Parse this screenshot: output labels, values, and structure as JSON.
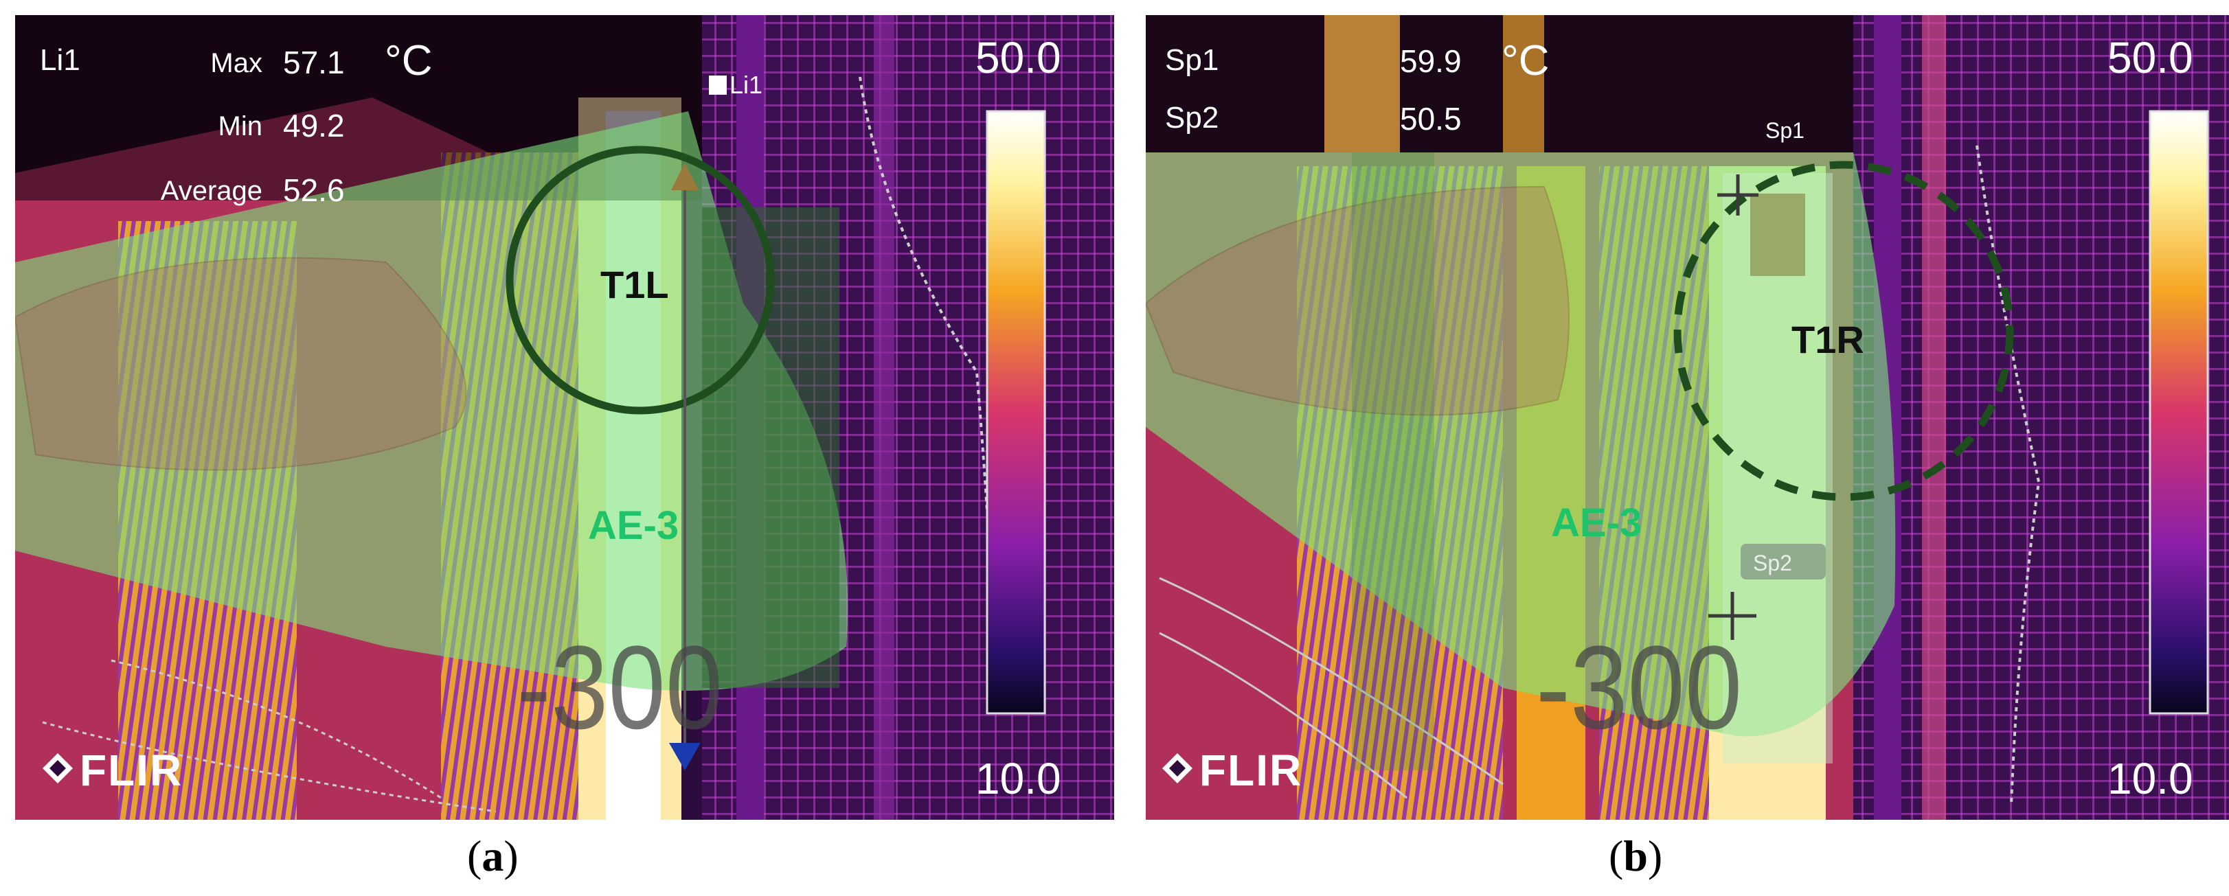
{
  "panels": [
    {
      "caption_letter": "a",
      "readout": {
        "label": "Li1",
        "rows": [
          {
            "name": "Max",
            "value": "57.1"
          },
          {
            "name": "Min",
            "value": "49.2"
          },
          {
            "name": "Average",
            "value": "52.6"
          }
        ],
        "unit": "°C"
      },
      "tool_tag": "Li1",
      "region_label": "T1L",
      "area_label": "AE-3",
      "distance_label": "-300",
      "scale": {
        "max": "50.0",
        "min": "10.0"
      },
      "brand": "FLIR"
    },
    {
      "caption_letter": "b",
      "readout": {
        "rows": [
          {
            "name": "Sp1",
            "value": "59.9"
          },
          {
            "name": "Sp2",
            "value": "50.5"
          }
        ],
        "unit": "°C"
      },
      "spot_tags": [
        "Sp1",
        "Sp2"
      ],
      "region_label": "T1R",
      "area_label": "AE-3",
      "distance_label": "-300",
      "scale": {
        "max": "50.0",
        "min": "10.0"
      },
      "brand": "FLIR"
    }
  ],
  "colors": {
    "overlay_green": "#7be37b",
    "circle_dark_green": "#1e4d1e",
    "thermal_purple": "#5a1a7a",
    "thermal_orange": "#f0a020",
    "area_text": "#1fc46a"
  }
}
